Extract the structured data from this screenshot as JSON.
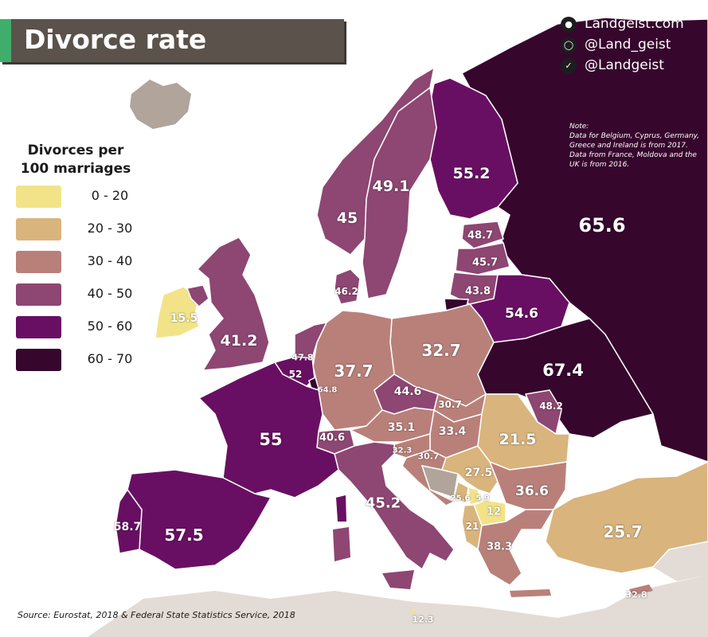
{
  "title": "Divorce rate",
  "social": [
    {
      "icon": "globe-icon",
      "label": "Landgeist.com"
    },
    {
      "icon": "instagram-icon",
      "label": "@Land_geist"
    },
    {
      "icon": "twitter-icon",
      "label": "@Landgeist"
    }
  ],
  "legend": {
    "title_line1": "Divorces per",
    "title_line2": "100 marriages",
    "bins": [
      {
        "label": "0 - 20",
        "color": "#f2e389"
      },
      {
        "label": "20 - 30",
        "color": "#d9b47d"
      },
      {
        "label": "30 - 40",
        "color": "#b9807a"
      },
      {
        "label": "40 - 50",
        "color": "#8e4673"
      },
      {
        "label": "50 - 60",
        "color": "#690f63"
      },
      {
        "label": "60 - 70",
        "color": "#36062d"
      }
    ]
  },
  "note": {
    "line1": "Note:",
    "line2": "Data for Belgium, Cyprus, Germany,",
    "line3": "Greece and Ireland is from 2017.",
    "line4": "Data from France, Moldova and the",
    "line5": "UK is from 2016."
  },
  "source": "Source: Eurostat, 2018 & Federal State Statistics Service, 2018",
  "colors": {
    "no_data": "#b0a49b",
    "outside": "#e3dbd5",
    "sea": "#ffffff",
    "border": "#ffffff"
  },
  "values": {
    "russia": "65.6",
    "finland": "55.2",
    "sweden": "49.1",
    "norway": "45",
    "denmark": "46.2",
    "estonia": "48.7",
    "latvia": "45.7",
    "lithuania": "43.8",
    "belarus": "54.6",
    "ukraine": "67.4",
    "moldova": "48.2",
    "poland": "32.7",
    "germany": "37.7",
    "czechia": "44.6",
    "slovakia": "30.7",
    "hungary": "33.4",
    "austria": "35.1",
    "switzerland": "40.6",
    "luxembourg": "64.8",
    "belgium": "52",
    "netherlands": "47.8",
    "uk": "41.2",
    "ireland": "15.5",
    "france": "55",
    "spain": "57.5",
    "portugal": "58.7",
    "italy": "45.2",
    "slovenia": "32.3",
    "croatia": "30.7",
    "serbia": "27.5",
    "romania": "21.5",
    "bulgaria": "36.6",
    "montenegro": "25.6",
    "kosovo": "5.9",
    "north_macedonia": "12",
    "albania": "21",
    "greece": "38.3",
    "turkey": "25.7",
    "cyprus": "32.8",
    "malta": "12.3"
  },
  "chart_data": {
    "type": "choropleth",
    "title": "Divorce rate",
    "legend_title": "Divorces per 100 marriages",
    "regions": [
      {
        "name": "Russia",
        "value": 65.6
      },
      {
        "name": "Ukraine",
        "value": 67.4
      },
      {
        "name": "Luxembourg",
        "value": 64.8
      },
      {
        "name": "Portugal",
        "value": 58.7
      },
      {
        "name": "Spain",
        "value": 57.5
      },
      {
        "name": "Finland",
        "value": 55.2
      },
      {
        "name": "France",
        "value": 55
      },
      {
        "name": "Belarus",
        "value": 54.6
      },
      {
        "name": "Belgium",
        "value": 52
      },
      {
        "name": "Sweden",
        "value": 49.1
      },
      {
        "name": "Estonia",
        "value": 48.7
      },
      {
        "name": "Moldova",
        "value": 48.2
      },
      {
        "name": "Netherlands",
        "value": 47.8
      },
      {
        "name": "Denmark",
        "value": 46.2
      },
      {
        "name": "Latvia",
        "value": 45.7
      },
      {
        "name": "Italy",
        "value": 45.2
      },
      {
        "name": "Norway",
        "value": 45
      },
      {
        "name": "Czechia",
        "value": 44.6
      },
      {
        "name": "Lithuania",
        "value": 43.8
      },
      {
        "name": "United Kingdom",
        "value": 41.2
      },
      {
        "name": "Switzerland",
        "value": 40.6
      },
      {
        "name": "Greece",
        "value": 38.3
      },
      {
        "name": "Germany",
        "value": 37.7
      },
      {
        "name": "Bulgaria",
        "value": 36.6
      },
      {
        "name": "Austria",
        "value": 35.1
      },
      {
        "name": "Hungary",
        "value": 33.4
      },
      {
        "name": "Cyprus",
        "value": 32.8
      },
      {
        "name": "Poland",
        "value": 32.7
      },
      {
        "name": "Slovenia",
        "value": 32.3
      },
      {
        "name": "Slovakia",
        "value": 30.7
      },
      {
        "name": "Croatia",
        "value": 30.7
      },
      {
        "name": "Serbia",
        "value": 27.5
      },
      {
        "name": "Turkey",
        "value": 25.7
      },
      {
        "name": "Montenegro",
        "value": 25.6
      },
      {
        "name": "Romania",
        "value": 21.5
      },
      {
        "name": "Albania",
        "value": 21
      },
      {
        "name": "Ireland",
        "value": 15.5
      },
      {
        "name": "Malta",
        "value": 12.3
      },
      {
        "name": "North Macedonia",
        "value": 12
      },
      {
        "name": "Kosovo",
        "value": 5.9
      }
    ]
  }
}
